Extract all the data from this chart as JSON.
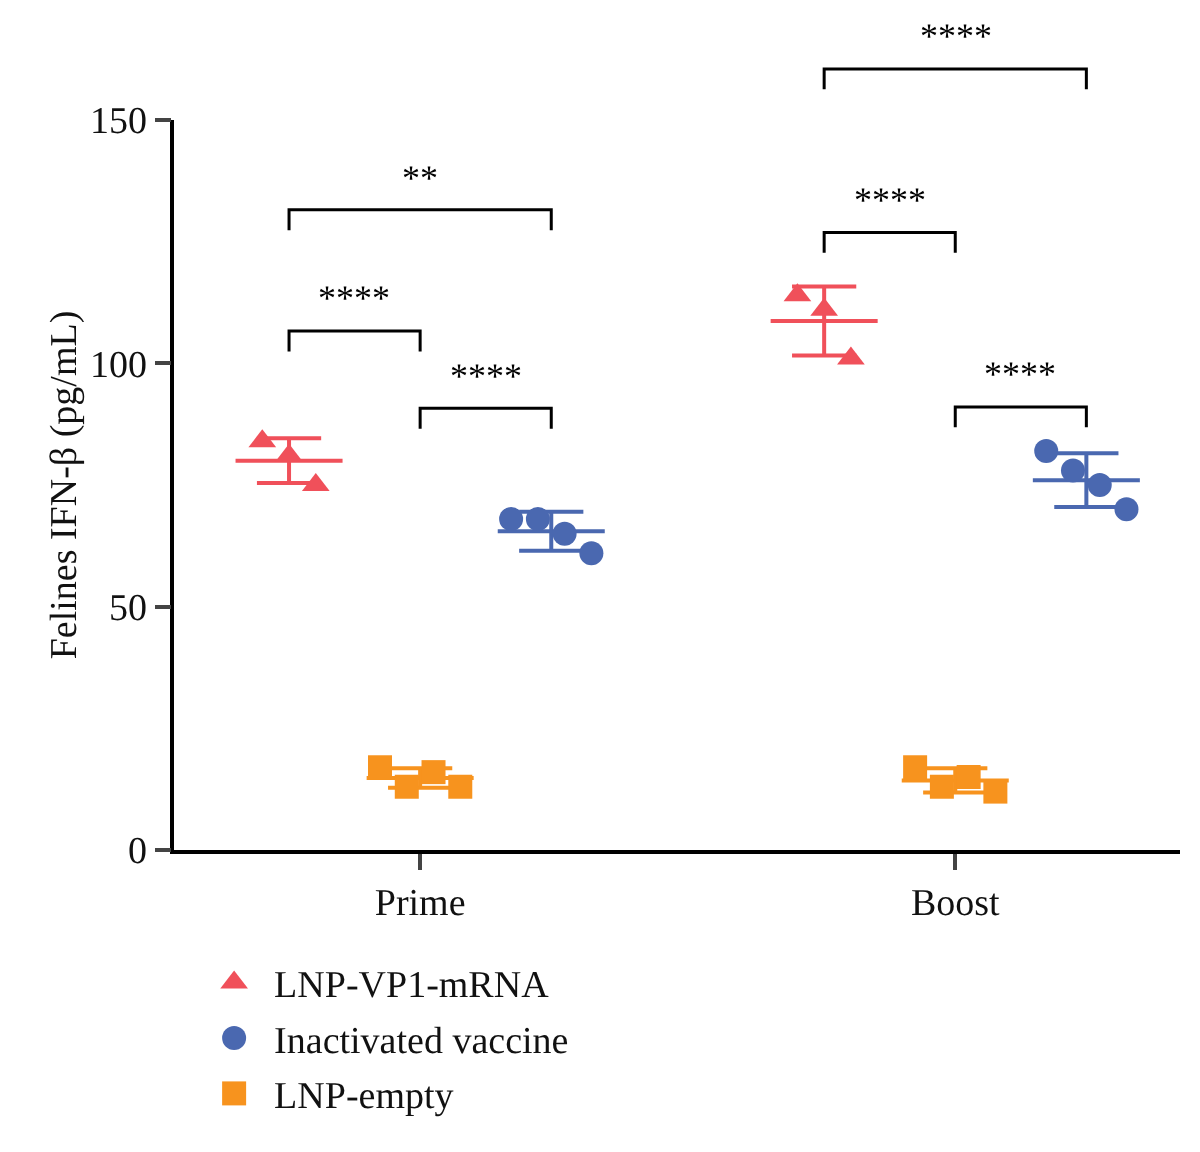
{
  "chart_data": {
    "type": "scatter",
    "ylabel": "Felines IFN-β (pg/mL)",
    "categories": [
      "Prime",
      "Boost"
    ],
    "ylim": [
      0,
      150
    ],
    "yticks": [
      0,
      50,
      100,
      150
    ],
    "grid": false,
    "legend": "bottom",
    "series": [
      {
        "name": "LNP-VP1-mRNA",
        "color": "#f0505a",
        "marker": "triangle",
        "x": [
          "Prime",
          "Prime",
          "Prime",
          "Boost",
          "Boost",
          "Boost"
        ],
        "values": [
          84,
          81,
          75,
          114,
          111,
          101
        ]
      },
      {
        "name": "LNP-empty",
        "color": "#f7931e",
        "marker": "square",
        "x": [
          "Prime",
          "Prime",
          "Prime",
          "Prime",
          "Boost",
          "Boost",
          "Boost",
          "Boost"
        ],
        "values": [
          17,
          13,
          16,
          13,
          17,
          13,
          15,
          12
        ]
      },
      {
        "name": "Inactivated vaccine",
        "color": "#4a68b0",
        "marker": "circle",
        "x": [
          "Prime",
          "Prime",
          "Prime",
          "Prime",
          "Boost",
          "Boost",
          "Boost",
          "Boost"
        ],
        "values": [
          68,
          68,
          65,
          61,
          82,
          78,
          75,
          70
        ]
      },
      {
        "type": "box",
        "color": "#f0505a",
        "boxes": [
          {
            "low": 75.4,
            "q1": 80,
            "median": 80,
            "q3": 80,
            "high": 84.6
          },
          {
            "low": 101.6,
            "q1": 108.7,
            "median": 108.7,
            "q3": 108.7,
            "high": 115.8
          }
        ]
      },
      {
        "type": "box",
        "color": "#f7931e",
        "boxes": [
          {
            "low": 12.8,
            "q1": 14.8,
            "median": 14.8,
            "q3": 14.8,
            "high": 16.8
          },
          {
            "low": 11.8,
            "q1": 14.3,
            "median": 14.3,
            "q3": 14.3,
            "high": 16.8
          }
        ]
      },
      {
        "type": "box",
        "color": "#4a68b0",
        "boxes": [
          {
            "low": 61.5,
            "q1": 65.5,
            "median": 65.5,
            "q3": 65.5,
            "high": 69.5
          },
          {
            "low": 70.5,
            "q1": 76,
            "median": 76,
            "q3": 76,
            "high": 81.5
          }
        ]
      }
    ],
    "annotations": [
      "**",
      "****",
      "****",
      "****",
      "****",
      "****"
    ]
  }
}
